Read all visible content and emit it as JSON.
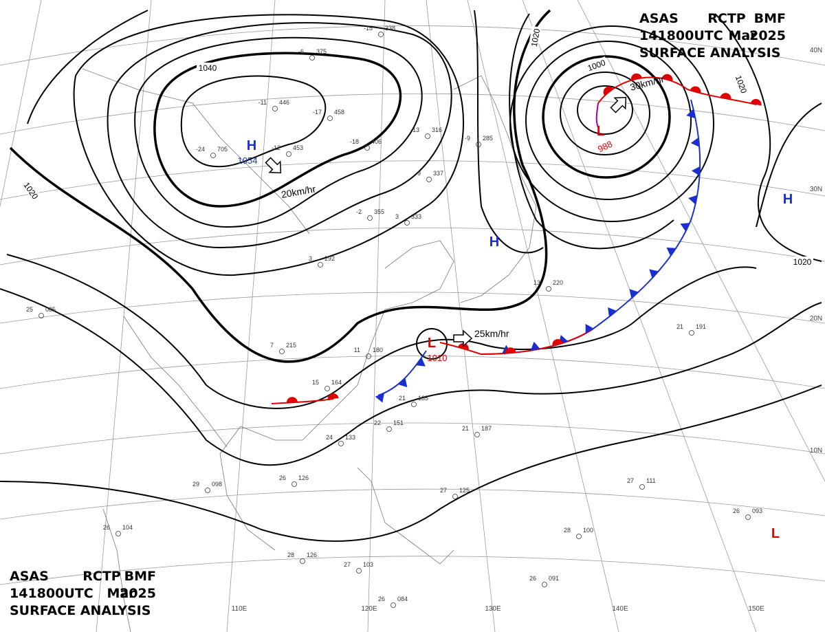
{
  "header_top": {
    "line1": [
      "ASAS",
      "RCTP",
      "BMF"
    ],
    "line2": [
      "141800UTC",
      "Mar",
      "2025"
    ],
    "line3": "SURFACE ANALYSIS"
  },
  "header_bottom": {
    "line1": [
      "ASAS",
      "RCTP",
      "BMF"
    ],
    "line2": [
      "141800UTC",
      "Mar",
      "2025"
    ],
    "line3": "SURFACE ANALYSIS"
  },
  "isobar_labels": [
    "1040",
    "1020",
    "1020",
    "1000",
    "1020",
    "1020"
  ],
  "systems": [
    {
      "label": "H",
      "value": "1054",
      "color": "#1a2fd0"
    },
    {
      "label": "L",
      "value": "988",
      "color": "#e00000"
    },
    {
      "label": "L",
      "value": "1010",
      "color": "#e00000"
    },
    {
      "label": "H",
      "color": "#1a2fd0"
    },
    {
      "label": "H",
      "color": "#1a2fd0"
    },
    {
      "label": "L",
      "color": "#e00000"
    }
  ],
  "motions": [
    "20km/hr",
    "30km/hr",
    "25km/hr"
  ],
  "longitude_labels": [
    "110E",
    "120E",
    "130E",
    "140E",
    "150E"
  ],
  "latitude_labels": [
    "40N",
    "30N",
    "20N",
    "10N"
  ],
  "stations": [
    {
      "temp": "-24",
      "pressure": "705"
    },
    {
      "temp": "-12",
      "pressure": "453"
    },
    {
      "temp": "-11",
      "pressure": "446"
    },
    {
      "temp": "-17",
      "pressure": "458"
    },
    {
      "temp": "-6",
      "pressure": "375"
    },
    {
      "temp": "-15",
      "pressure": "338"
    },
    {
      "temp": "-13",
      "pressure": "316"
    },
    {
      "temp": "-18",
      "pressure": "406"
    },
    {
      "temp": "-9",
      "pressure": "337"
    },
    {
      "temp": "-9",
      "pressure": "285"
    },
    {
      "temp": "-2",
      "pressure": "355"
    },
    {
      "temp": "3",
      "pressure": "333"
    },
    {
      "temp": "3",
      "pressure": "292"
    },
    {
      "temp": "7",
      "pressure": "215"
    },
    {
      "temp": "11",
      "pressure": "180"
    },
    {
      "temp": "15",
      "pressure": "164"
    },
    {
      "temp": "24",
      "pressure": "133"
    },
    {
      "temp": "21",
      "pressure": "135"
    },
    {
      "temp": "22",
      "pressure": "151"
    },
    {
      "temp": "21",
      "pressure": "187"
    },
    {
      "temp": "26",
      "pressure": "126"
    },
    {
      "temp": "29",
      "pressure": "098"
    },
    {
      "temp": "26",
      "pressure": "104"
    },
    {
      "temp": "28",
      "pressure": "126"
    },
    {
      "temp": "27",
      "pressure": "103"
    },
    {
      "temp": "26",
      "pressure": "084"
    },
    {
      "temp": "27",
      "pressure": "125"
    },
    {
      "temp": "26",
      "pressure": "091"
    },
    {
      "temp": "27",
      "pressure": "111"
    },
    {
      "temp": "26",
      "pressure": "093"
    },
    {
      "temp": "28",
      "pressure": "100"
    },
    {
      "temp": "21",
      "pressure": "191"
    },
    {
      "temp": "13",
      "pressure": "220"
    },
    {
      "temp": "25",
      "pressure": "085"
    }
  ]
}
